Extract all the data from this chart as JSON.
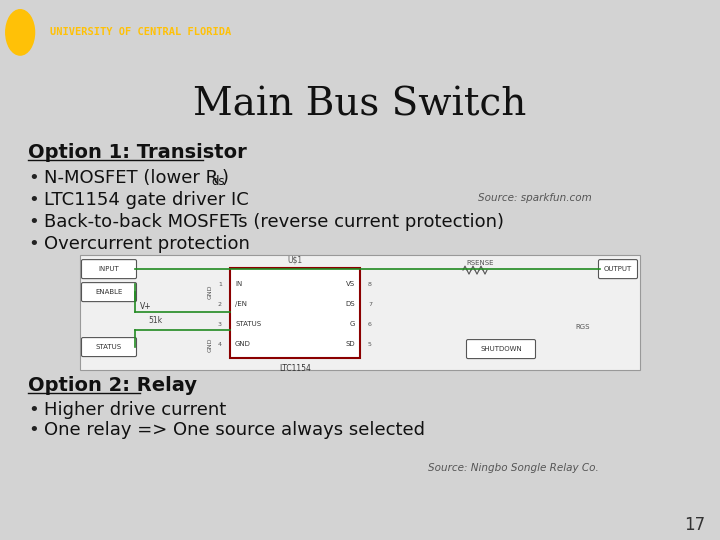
{
  "title": "Main Bus Switch",
  "header_bg": "#111111",
  "header_text": "UNIVERSITY OF CENTRAL FLORIDA",
  "header_text_color": "#FFC107",
  "gold_bar_color": "#FFC107",
  "slide_bg": "#D3D3D3",
  "title_color": "#111111",
  "title_fontsize": 28,
  "option1_heading": "Option 1: Transistor",
  "option1_bullets": [
    "N-MOSFET (lower R",
    "LTC1154 gate driver IC",
    "Back-to-back MOSFETs (reverse current protection)",
    "Overcurrent protection"
  ],
  "option1_source": "Source: sparkfun.com",
  "option2_heading": "Option 2: Relay",
  "option2_bullets": [
    "Higher drive current",
    "One relay => One source always selected"
  ],
  "option2_source": "Source: Ningbo Songle Relay Co.",
  "page_number": "17",
  "body_fontsize": 13,
  "heading_fontsize": 14
}
